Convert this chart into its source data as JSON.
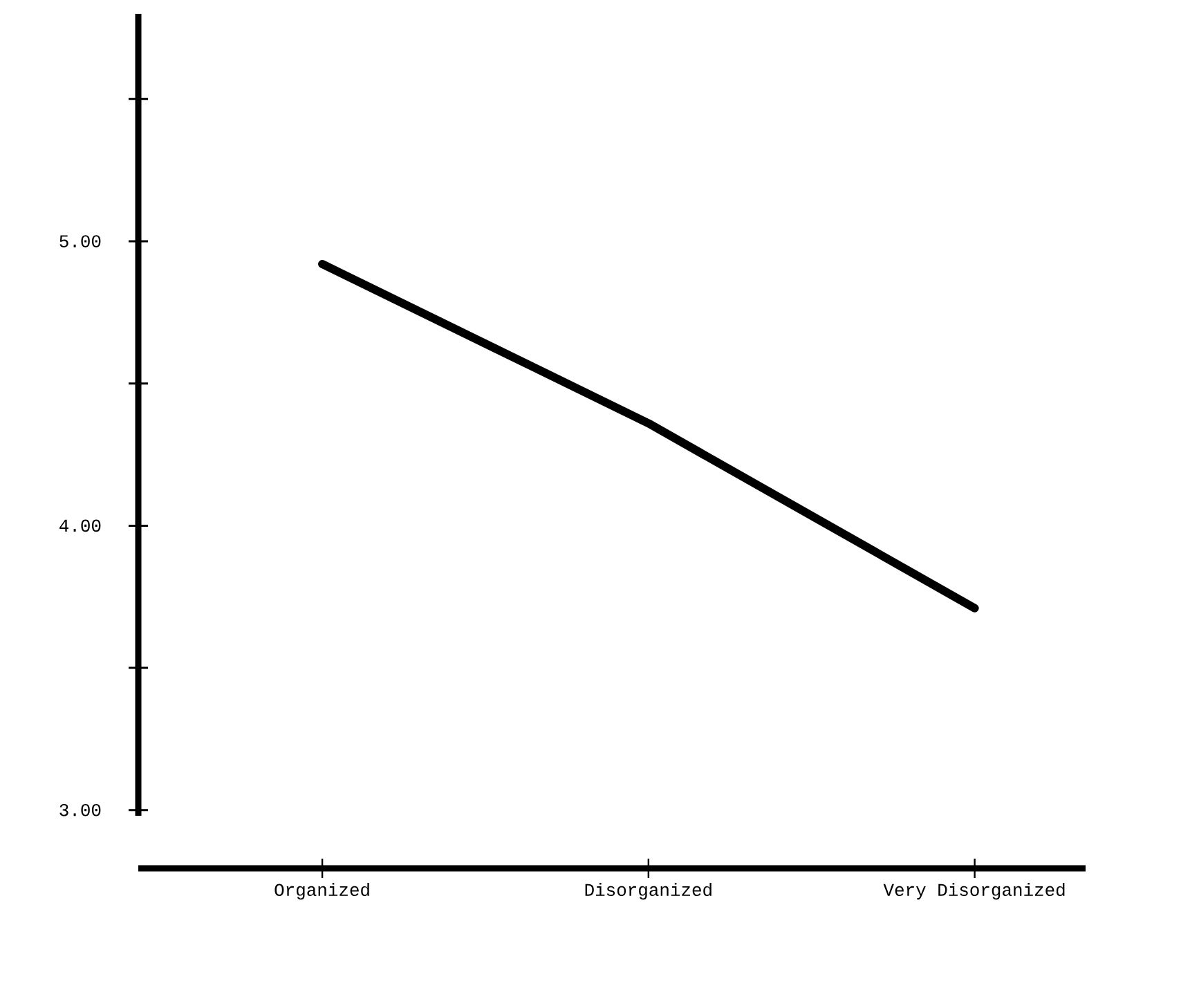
{
  "chart_data": {
    "type": "line",
    "categories": [
      "Organized",
      "Disorganized",
      "Very Disorganized"
    ],
    "values": [
      4.92,
      4.36,
      3.71
    ],
    "color": "#000000",
    "marker": "none",
    "line_style": "solid",
    "ylim": [
      2.98,
      5.8
    ],
    "yticks": [
      {
        "value": 3,
        "label": "3.00"
      },
      {
        "value": 3.5,
        "label": null
      },
      {
        "value": 4,
        "label": "4.00"
      },
      {
        "value": 4.5,
        "label": null
      },
      {
        "value": 5,
        "label": "5.00"
      },
      {
        "value": 5.5,
        "label": null
      }
    ]
  }
}
